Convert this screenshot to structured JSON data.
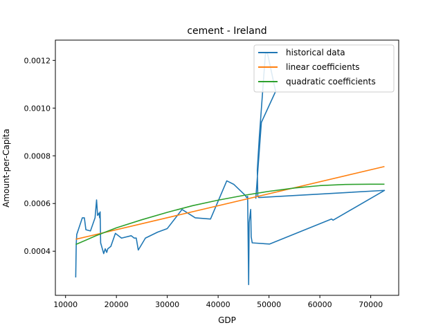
{
  "chart_data": {
    "type": "line",
    "title": "cement - Ireland",
    "xlabel": "GDP",
    "ylabel": "Amount-per-Capita",
    "xlim": [
      8000,
      75500
    ],
    "ylim": [
      0.000215,
      0.001285
    ],
    "x_ticks": [
      10000,
      20000,
      30000,
      40000,
      50000,
      60000,
      70000
    ],
    "x_tick_labels": [
      "10000",
      "20000",
      "30000",
      "40000",
      "50000",
      "60000",
      "70000"
    ],
    "y_ticks": [
      0.0004,
      0.0006,
      0.0008,
      0.001,
      0.0012
    ],
    "y_tick_labels": [
      "0.0004",
      "0.0006",
      "0.0008",
      "0.0010",
      "0.0012"
    ],
    "grid": false,
    "legend_position": "top-right",
    "series": [
      {
        "name": "historical data",
        "color": "#1f77b4",
        "points": [
          [
            12000,
            0.00029
          ],
          [
            12100,
            0.00043
          ],
          [
            12200,
            0.00047
          ],
          [
            13300,
            0.00054
          ],
          [
            13700,
            0.00054
          ],
          [
            14000,
            0.00049
          ],
          [
            14900,
            0.000485
          ],
          [
            15800,
            0.00054
          ],
          [
            16100,
            0.000615
          ],
          [
            16300,
            0.00055
          ],
          [
            16600,
            0.00056
          ],
          [
            16700,
            0.00054
          ],
          [
            16800,
            0.000565
          ],
          [
            16900,
            0.000435
          ],
          [
            17100,
            0.00042
          ],
          [
            17500,
            0.00039
          ],
          [
            17800,
            0.00041
          ],
          [
            18100,
            0.000395
          ],
          [
            18300,
            0.00041
          ],
          [
            18900,
            0.00042
          ],
          [
            19800,
            0.000475
          ],
          [
            21000,
            0.000455
          ],
          [
            22900,
            0.000465
          ],
          [
            23500,
            0.000455
          ],
          [
            23900,
            0.000455
          ],
          [
            24300,
            0.000405
          ],
          [
            25700,
            0.000455
          ],
          [
            28100,
            0.00048
          ],
          [
            30000,
            0.000495
          ],
          [
            32900,
            0.000575
          ],
          [
            35500,
            0.00054
          ],
          [
            38500,
            0.000535
          ],
          [
            41700,
            0.000695
          ],
          [
            43100,
            0.00068
          ],
          [
            45300,
            0.000635
          ],
          [
            45600,
            0.000625
          ],
          [
            45800,
            0.00063
          ],
          [
            46000,
            0.00026
          ],
          [
            46100,
            0.00052
          ],
          [
            46400,
            0.000575
          ],
          [
            46500,
            0.00046
          ],
          [
            46700,
            0.000435
          ],
          [
            50100,
            0.00043
          ],
          [
            62300,
            0.000535
          ],
          [
            62600,
            0.00053
          ],
          [
            72700,
            0.000655
          ],
          [
            48000,
            0.000625
          ],
          [
            47800,
            0.00063
          ],
          [
            47700,
            0.00074
          ],
          [
            48100,
            0.00088
          ],
          [
            49300,
            0.00123
          ],
          [
            49700,
            0.00123
          ],
          [
            51300,
            0.00107
          ],
          [
            48500,
            0.00094
          ],
          [
            47400,
            0.00062
          ]
        ]
      },
      {
        "name": "linear coefficients",
        "color": "#ff7f0e",
        "points": [
          [
            12000,
            0.00045
          ],
          [
            72700,
            0.000755
          ]
        ]
      },
      {
        "name": "quadratic coefficients",
        "color": "#2ca02c",
        "points": [
          [
            12000,
            0.000428
          ],
          [
            16000,
            0.000465
          ],
          [
            20000,
            0.000498
          ],
          [
            25000,
            0.000532
          ],
          [
            30000,
            0.000563
          ],
          [
            35000,
            0.000591
          ],
          [
            40000,
            0.000614
          ],
          [
            45000,
            0.000634
          ],
          [
            50000,
            0.000651
          ],
          [
            55000,
            0.000665
          ],
          [
            60000,
            0.000675
          ],
          [
            65000,
            0.00068
          ],
          [
            70000,
            0.000681
          ],
          [
            72700,
            0.000681
          ]
        ]
      }
    ]
  }
}
